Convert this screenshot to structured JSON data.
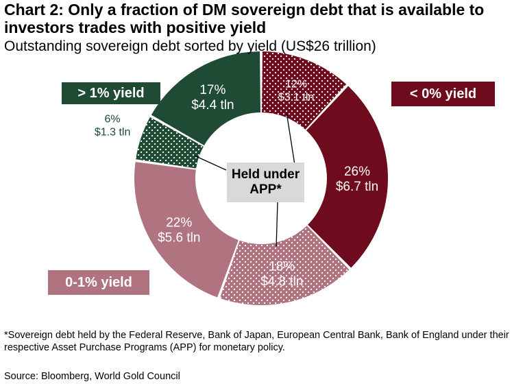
{
  "title": "Chart 2: Only a fraction of DM sovereign debt that is available to investors trades with positive yield",
  "subtitle": "Outstanding sovereign debt sorted by yield (US$26 trillion)",
  "chart_data": {
    "type": "pie",
    "variant": "donut",
    "total_label": "US$26 trillion",
    "slices": [
      {
        "pct": 12,
        "value_tln": 3.1,
        "pct_label": "12%",
        "value_label": "$3.1 tln",
        "group": "< 0% yield",
        "held_under_app": true,
        "color": "#6e0b1c",
        "dotted": true
      },
      {
        "pct": 26,
        "value_tln": 6.7,
        "pct_label": "26%",
        "value_label": "$6.7 tln",
        "group": "< 0% yield",
        "held_under_app": false,
        "color": "#6e0b1c",
        "dotted": false
      },
      {
        "pct": 18,
        "value_tln": 4.8,
        "pct_label": "18%",
        "value_label": "$4.8 tln",
        "group": "0-1% yield",
        "held_under_app": true,
        "color": "#b07480",
        "dotted": true
      },
      {
        "pct": 22,
        "value_tln": 5.6,
        "pct_label": "22%",
        "value_label": "$5.6 tln",
        "group": "0-1% yield",
        "held_under_app": false,
        "color": "#b07480",
        "dotted": false
      },
      {
        "pct": 6,
        "value_tln": 1.3,
        "pct_label": "6%",
        "value_label": "$1.3 tln",
        "group": "> 1% yield",
        "held_under_app": true,
        "color": "#1f4a34",
        "dotted": true
      },
      {
        "pct": 17,
        "value_tln": 4.4,
        "pct_label": "17%",
        "value_label": "$4.4 tln",
        "group": "> 1% yield",
        "held_under_app": false,
        "color": "#1f4a34",
        "dotted": false
      }
    ],
    "category_labels": {
      "gt1": "> 1% yield",
      "lt0": "< 0% yield",
      "zero_one": "0-1% yield"
    },
    "center_label": [
      "Held under",
      "APP*"
    ]
  },
  "footnote": "*Sovereign debt held by the Federal Reserve, Bank of Japan, European Central Bank, Bank of England under their respective Asset Purchase Programs (APP) for monetary policy.",
  "source": "Source: Bloomberg, World Gold Council"
}
